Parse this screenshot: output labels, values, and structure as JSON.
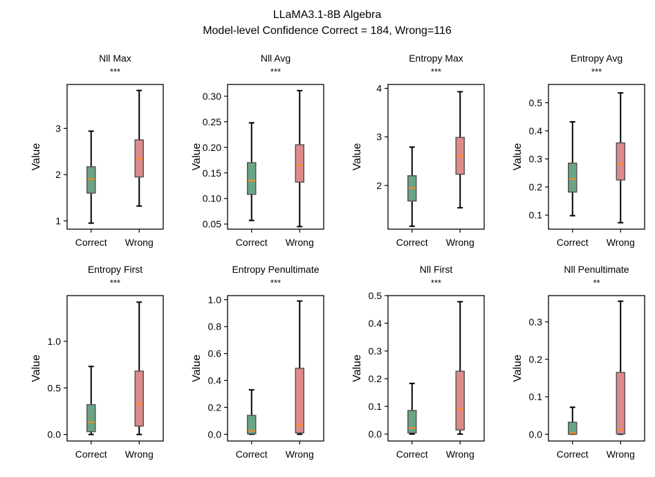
{
  "figure": {
    "title_line1": "LLaMA3.1-8B Algebra",
    "title_line2": "Model-level Confidence Correct = 184, Wrong=116"
  },
  "colors": {
    "correct_box": "#6aa584",
    "wrong_box": "#de8a8a",
    "median": "#ff8c1a",
    "box_edge": "#555555",
    "whisker": "#000000"
  },
  "chart_data": [
    {
      "type": "box",
      "title": "Nll Max",
      "significance": "***",
      "ylabel": "Value",
      "categories": [
        "Correct",
        "Wrong"
      ],
      "ylim": [
        0.82,
        3.95
      ],
      "yticks": [
        1,
        2,
        3
      ],
      "ytick_labels": [
        "1",
        "2",
        "3"
      ],
      "boxes": [
        {
          "min": 0.95,
          "q1": 1.6,
          "median": 1.9,
          "q3": 2.17,
          "max": 2.94
        },
        {
          "min": 1.32,
          "q1": 1.95,
          "median": 2.35,
          "q3": 2.75,
          "max": 3.82
        }
      ]
    },
    {
      "type": "box",
      "title": "Nll Avg",
      "significance": "***",
      "ylabel": "Value",
      "categories": [
        "Correct",
        "Wrong"
      ],
      "ylim": [
        0.04,
        0.323
      ],
      "yticks": [
        0.05,
        0.1,
        0.15,
        0.2,
        0.25,
        0.3
      ],
      "ytick_labels": [
        "0.05",
        "0.10",
        "0.15",
        "0.20",
        "0.25",
        "0.30"
      ],
      "boxes": [
        {
          "min": 0.057,
          "q1": 0.108,
          "median": 0.135,
          "q3": 0.17,
          "max": 0.248
        },
        {
          "min": 0.045,
          "q1": 0.132,
          "median": 0.165,
          "q3": 0.205,
          "max": 0.311
        }
      ]
    },
    {
      "type": "box",
      "title": "Entropy Max",
      "significance": "***",
      "ylabel": "Value",
      "categories": [
        "Correct",
        "Wrong"
      ],
      "ylim": [
        1.1,
        4.08
      ],
      "yticks": [
        2,
        3,
        4
      ],
      "ytick_labels": [
        "2",
        "3",
        "4"
      ],
      "boxes": [
        {
          "min": 1.16,
          "q1": 1.68,
          "median": 1.95,
          "q3": 2.2,
          "max": 2.79
        },
        {
          "min": 1.54,
          "q1": 2.23,
          "median": 2.61,
          "q3": 2.99,
          "max": 3.93
        }
      ]
    },
    {
      "type": "box",
      "title": "Entropy Avg",
      "significance": "***",
      "ylabel": "Value",
      "categories": [
        "Correct",
        "Wrong"
      ],
      "ylim": [
        0.05,
        0.565
      ],
      "yticks": [
        0.1,
        0.2,
        0.3,
        0.4,
        0.5
      ],
      "ytick_labels": [
        "0.1",
        "0.2",
        "0.3",
        "0.4",
        "0.5"
      ],
      "boxes": [
        {
          "min": 0.098,
          "q1": 0.182,
          "median": 0.228,
          "q3": 0.285,
          "max": 0.432
        },
        {
          "min": 0.073,
          "q1": 0.225,
          "median": 0.283,
          "q3": 0.357,
          "max": 0.535
        }
      ]
    },
    {
      "type": "box",
      "title": "Entropy First",
      "significance": "***",
      "ylabel": "Value",
      "categories": [
        "Correct",
        "Wrong"
      ],
      "ylim": [
        -0.07,
        1.49
      ],
      "yticks": [
        0,
        0.5,
        1.0
      ],
      "ytick_labels": [
        "0.0",
        "0.5",
        "1.0"
      ],
      "boxes": [
        {
          "min": 0.0,
          "q1": 0.03,
          "median": 0.13,
          "q3": 0.32,
          "max": 0.73
        },
        {
          "min": 0.0,
          "q1": 0.09,
          "median": 0.33,
          "q3": 0.68,
          "max": 1.42
        }
      ]
    },
    {
      "type": "box",
      "title": "Entropy Penultimate",
      "significance": "***",
      "ylabel": "Value",
      "categories": [
        "Correct",
        "Wrong"
      ],
      "ylim": [
        -0.05,
        1.03
      ],
      "yticks": [
        0,
        0.2,
        0.4,
        0.6,
        0.8,
        1.0
      ],
      "ytick_labels": [
        "0.0",
        "0.2",
        "0.4",
        "0.6",
        "0.8",
        "1.0"
      ],
      "boxes": [
        {
          "min": 0.0,
          "q1": 0.003,
          "median": 0.025,
          "q3": 0.14,
          "max": 0.33
        },
        {
          "min": 0.0,
          "q1": 0.01,
          "median": 0.07,
          "q3": 0.49,
          "max": 0.99
        }
      ]
    },
    {
      "type": "box",
      "title": "Nll First",
      "significance": "***",
      "ylabel": "Value",
      "categories": [
        "Correct",
        "Wrong"
      ],
      "ylim": [
        -0.025,
        0.5
      ],
      "yticks": [
        0,
        0.1,
        0.2,
        0.3,
        0.4,
        0.5
      ],
      "ytick_labels": [
        "0.0",
        "0.1",
        "0.2",
        "0.3",
        "0.4",
        "0.5"
      ],
      "boxes": [
        {
          "min": 0.0,
          "q1": 0.004,
          "median": 0.022,
          "q3": 0.085,
          "max": 0.183
        },
        {
          "min": 0.0,
          "q1": 0.015,
          "median": 0.09,
          "q3": 0.227,
          "max": 0.478
        }
      ]
    },
    {
      "type": "box",
      "title": "Nll Penultimate",
      "significance": "**",
      "ylabel": "Value",
      "categories": [
        "Correct",
        "Wrong"
      ],
      "ylim": [
        -0.018,
        0.37
      ],
      "yticks": [
        0,
        0.1,
        0.2,
        0.3
      ],
      "ytick_labels": [
        "0.0",
        "0.1",
        "0.2",
        "0.3"
      ],
      "boxes": [
        {
          "min": 0.0,
          "q1": 0.0,
          "median": 0.003,
          "q3": 0.032,
          "max": 0.072
        },
        {
          "min": 0.0,
          "q1": 0.001,
          "median": 0.012,
          "q3": 0.165,
          "max": 0.355
        }
      ]
    }
  ]
}
